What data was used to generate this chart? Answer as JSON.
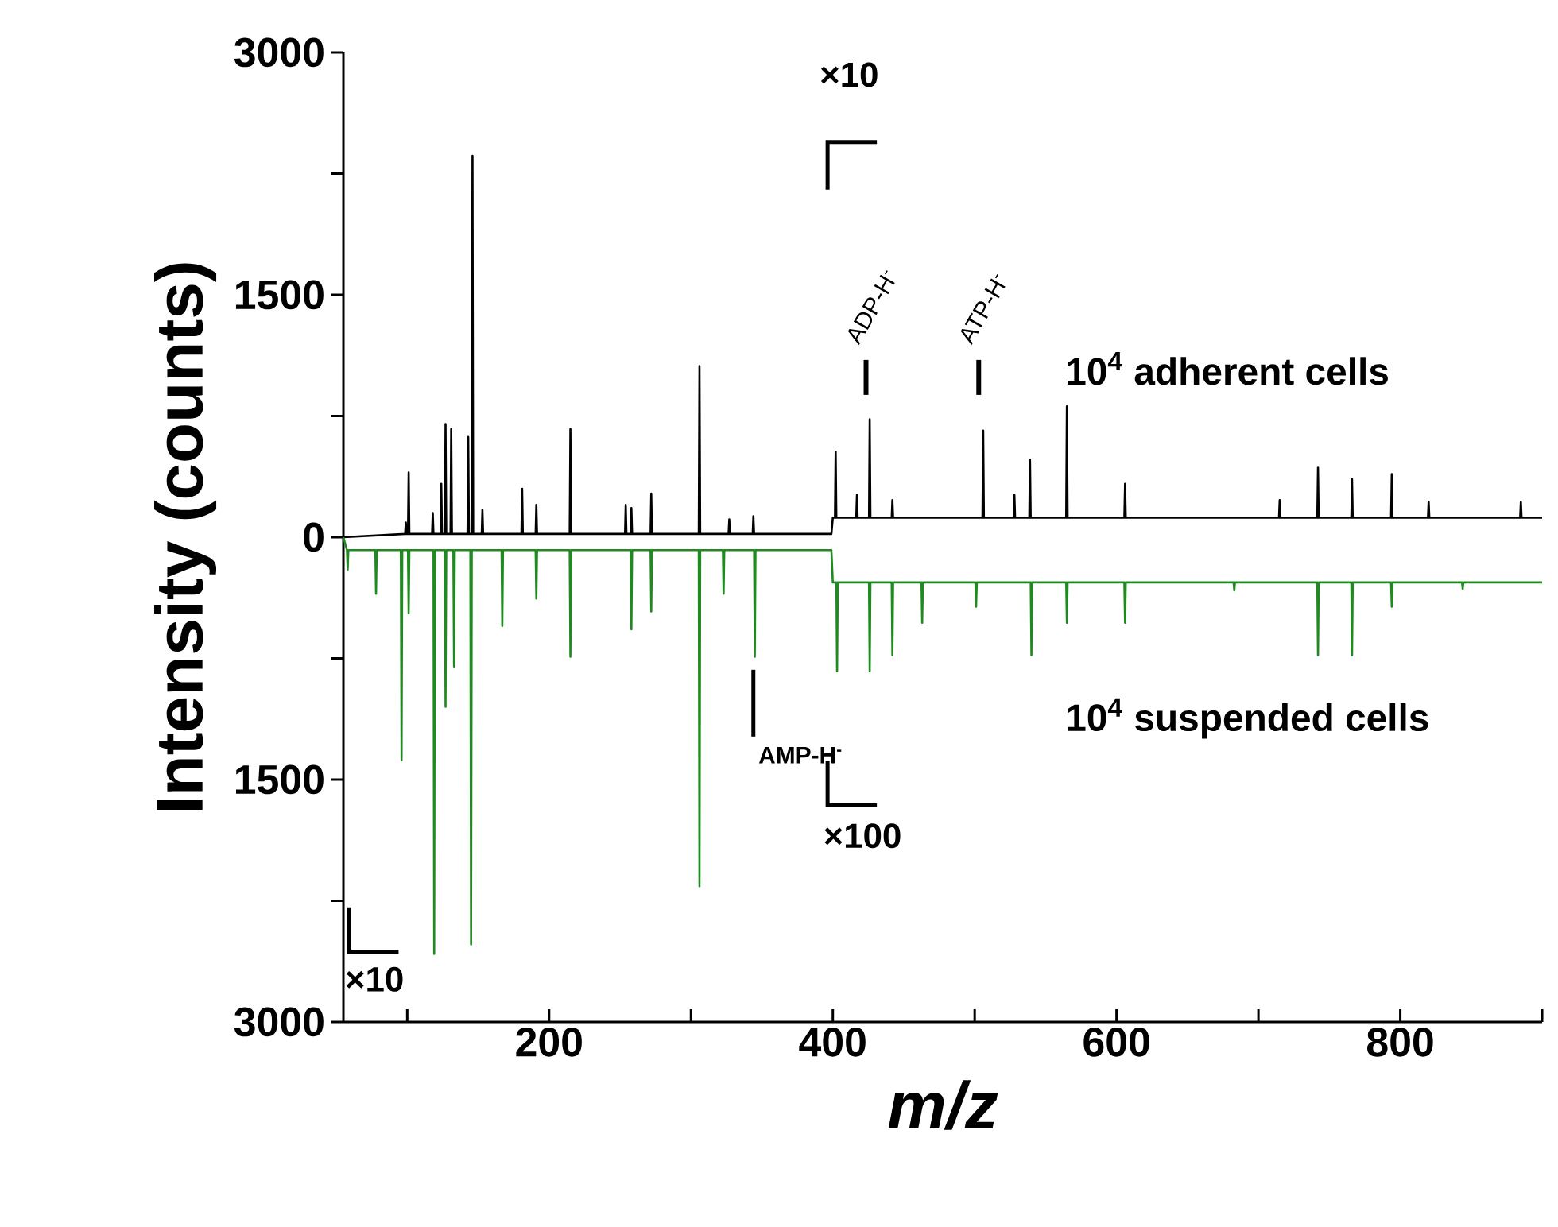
{
  "chart_data": {
    "type": "line",
    "xlabel": "m/z",
    "ylabel": "Intensity (counts)",
    "xlim": [
      55,
      900
    ],
    "ylim": [
      -3000,
      3000
    ],
    "xticks": [
      {
        "value": 100,
        "label": null
      },
      200,
      {
        "value": 300,
        "label": null
      },
      400,
      {
        "value": 500,
        "label": null
      },
      600,
      {
        "value": 700,
        "label": null
      },
      800,
      {
        "value": 900,
        "label": null
      }
    ],
    "yticks": [
      {
        "value": 3000,
        "label": "3000"
      },
      {
        "value": 2250,
        "label": null
      },
      {
        "value": 1500,
        "label": "1500"
      },
      {
        "value": 750,
        "label": null
      },
      0,
      {
        "value": -750,
        "label": null
      },
      {
        "value": -1500,
        "label": "1500"
      },
      {
        "value": -2250,
        "label": null
      },
      {
        "value": -3000,
        "label": "3000"
      }
    ],
    "series": [
      {
        "name": "10$^{4}$ adherent cells",
        "color": "#000000",
        "x": [
          55,
          98.5,
          99,
          99.5,
          100.5,
          101,
          101.5,
          117.5,
          118,
          118.5,
          123.5,
          124,
          124.5,
          126.5,
          127,
          127.5,
          130.5,
          131,
          131.5,
          142.5,
          143,
          143.5,
          145.5,
          146,
          146.5,
          152.5,
          153,
          153.5,
          180.5,
          181,
          181.5,
          190.5,
          191,
          191.5,
          214.5,
          215,
          215.5,
          253.5,
          254,
          254.5,
          257.5,
          258,
          258.5,
          271.5,
          272,
          272.5,
          305.5,
          306,
          306.5,
          326.5,
          327,
          327.5,
          343.5,
          344,
          344.5,
          399,
          400,
          401.5,
          402,
          402.5,
          416.5,
          417,
          417.5,
          425.5,
          426,
          426.5,
          441.5,
          442,
          442.5,
          505.5,
          506,
          506.5,
          527.5,
          528,
          528.5,
          538.5,
          539,
          539.5,
          564.5,
          565,
          565.5,
          605.5,
          606,
          606.5,
          714.5,
          715,
          715.5,
          741.5,
          742,
          742.5,
          765.5,
          766,
          766.5,
          793.5,
          794,
          794.5,
          819.5,
          820,
          820.5,
          884.5,
          885,
          885.5,
          900
        ],
        "values": [
          0,
          20,
          90,
          20,
          20,
          400,
          20,
          20,
          150,
          20,
          20,
          330,
          20,
          20,
          700,
          20,
          20,
          670,
          20,
          20,
          620,
          20,
          20,
          2360,
          20,
          20,
          170,
          20,
          20,
          300,
          20,
          20,
          200,
          20,
          20,
          670,
          20,
          20,
          200,
          20,
          20,
          180,
          20,
          20,
          270,
          20,
          20,
          1060,
          20,
          20,
          110,
          20,
          20,
          130,
          20,
          20,
          120,
          120,
          530,
          120,
          120,
          260,
          120,
          120,
          730,
          120,
          120,
          230,
          120,
          120,
          660,
          120,
          120,
          260,
          120,
          120,
          480,
          120,
          120,
          810,
          120,
          120,
          330,
          120,
          120,
          230,
          120,
          120,
          430,
          120,
          120,
          360,
          120,
          120,
          390,
          120,
          120,
          220,
          120,
          120,
          220,
          120,
          120
        ]
      },
      {
        "name": "10$^{4}$ suspended cells",
        "color": "#1f8a1f",
        "x": [
          55,
          57.5,
          58,
          58.5,
          77.5,
          78,
          78.5,
          95.5,
          96,
          96.5,
          100.5,
          101,
          101.5,
          118.5,
          119,
          119.5,
          126.5,
          127,
          127.5,
          132.5,
          133,
          133.5,
          144.5,
          145,
          145.5,
          166.5,
          167,
          167.5,
          190.5,
          191,
          191.5,
          214.5,
          215,
          215.5,
          257.5,
          258,
          258.5,
          271.5,
          272,
          272.5,
          305.5,
          306,
          306.5,
          322.5,
          323,
          323.5,
          344.5,
          345,
          345.5,
          399,
          400,
          402.5,
          403,
          403.5,
          425.5,
          426,
          426.5,
          441.5,
          442,
          442.5,
          462.5,
          463,
          463.5,
          500.5,
          501,
          501.5,
          539.5,
          540,
          540.5,
          564.5,
          565,
          565.5,
          605.5,
          606,
          606.5,
          682.5,
          683,
          683.5,
          741.5,
          742,
          742.5,
          765.5,
          766,
          766.5,
          793.5,
          794,
          794.5,
          843.5,
          844,
          844.5,
          900
        ],
        "values": [
          0,
          -80,
          -200,
          -80,
          -80,
          -350,
          -80,
          -80,
          -1380,
          -80,
          -80,
          -470,
          -80,
          -80,
          -2580,
          -80,
          -80,
          -1050,
          -80,
          -80,
          -800,
          -80,
          -80,
          -2520,
          -80,
          -80,
          -550,
          -80,
          -80,
          -380,
          -80,
          -80,
          -740,
          -80,
          -80,
          -570,
          -80,
          -80,
          -460,
          -80,
          -80,
          -2160,
          -80,
          -80,
          -350,
          -80,
          -80,
          -740,
          -80,
          -80,
          -280,
          -280,
          -830,
          -280,
          -280,
          -830,
          -280,
          -280,
          -730,
          -280,
          -280,
          -530,
          -280,
          -280,
          -430,
          -280,
          -280,
          -730,
          -280,
          -280,
          -530,
          -280,
          -280,
          -530,
          -280,
          -280,
          -330,
          -280,
          -280,
          -730,
          -280,
          -280,
          -730,
          -280,
          -280,
          -430,
          -280,
          -280,
          -320,
          -280,
          -280
        ]
      }
    ],
    "annotations": [
      "×10",
      "ADP-H$^{-}$",
      "ATP-H$^{-}$",
      "AMP-H$^{-}$",
      "×100",
      "×10"
    ]
  }
}
